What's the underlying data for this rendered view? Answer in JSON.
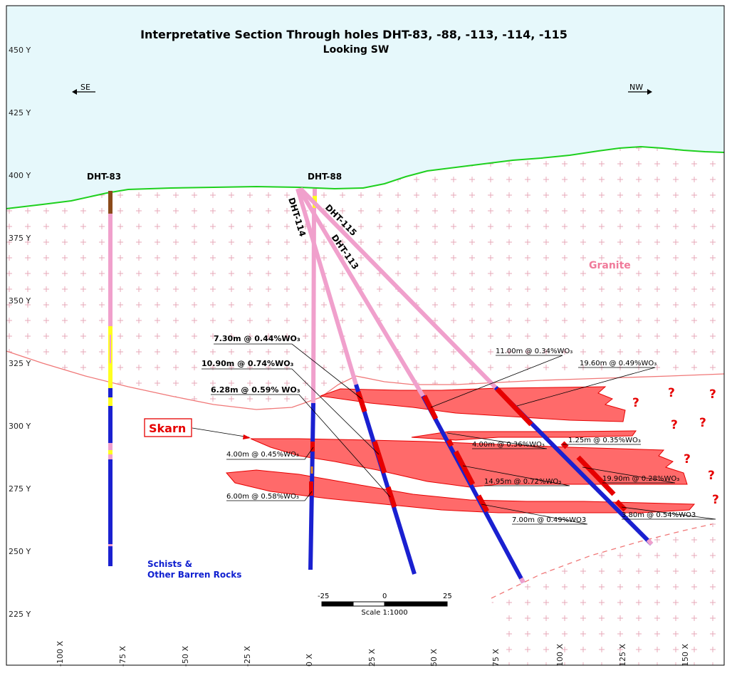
{
  "title": "Interpretative Section Through holes DHT-83, -88, -113, -114, -115",
  "subtitle": "Looking SW",
  "directions": {
    "left": "SE",
    "right": "NW"
  },
  "y_axis_labels": [
    "450 Y",
    "425 Y",
    "400 Y",
    "375 Y",
    "350 Y",
    "325 Y",
    "300 Y",
    "275 Y",
    "250 Y",
    "225 Y"
  ],
  "x_axis_labels": [
    "-100 X",
    "-75 X",
    "-50 X",
    "-25 X",
    "0 X",
    "25 X",
    "50 X",
    "75 X",
    "100 X",
    "125 X",
    "150 X"
  ],
  "holes": {
    "dht83": "DHT-83",
    "dht88": "DHT-88",
    "dht114": "DHT-114",
    "dht115": "DHT-115",
    "dht113": "DHT-113"
  },
  "rock_labels": {
    "granite": "Granite",
    "schist_line1": "Schists &",
    "schist_line2": "Other Barren Rocks",
    "skarn": "Skarn"
  },
  "intercepts": {
    "i1": "7.30m @ 0.44%WO₃",
    "i2": "10.90m @ 0.74%WO₃",
    "i3": "6.28m @ 0.59% WO₃",
    "i4": "4.00m @ 0.45%WO₃",
    "i5": "6.00m @ 0.58%WO₃",
    "i6": "11.00m @ 0.34%WO₃",
    "i7": "19.60m @ 0.49%WO₃",
    "i8": "4.00m @ 0.36%WO₃",
    "i9": "1.25m @ 0.35%WO₃",
    "i10": "14.95m @ 0.72%WO₃",
    "i11": "19.90m @ 0.28%WO₃",
    "i12": "7.00m @ 0.49%WO3",
    "i13": "3.80m @ 0.54%WO3"
  },
  "question_mark": "?",
  "scale": {
    "tick_left": "-25",
    "tick_mid": "0",
    "tick_right": "25",
    "label": "Scale 1:1000"
  },
  "colors": {
    "sky": "#e6f8fb",
    "topography": "#1ed01e",
    "granite_cross": "#e7a8b8",
    "contact_line": "#f07878",
    "skarn_fill": "#ff5a5a",
    "skarn_edge": "#e60000",
    "hole_granite": "#f0a0cc",
    "hole_schist": "#1a20d0",
    "hole_ore": "#e60000",
    "hole_yellow": "#ffff20",
    "hole_brown": "#8b4a1a",
    "frame": "#000000"
  }
}
